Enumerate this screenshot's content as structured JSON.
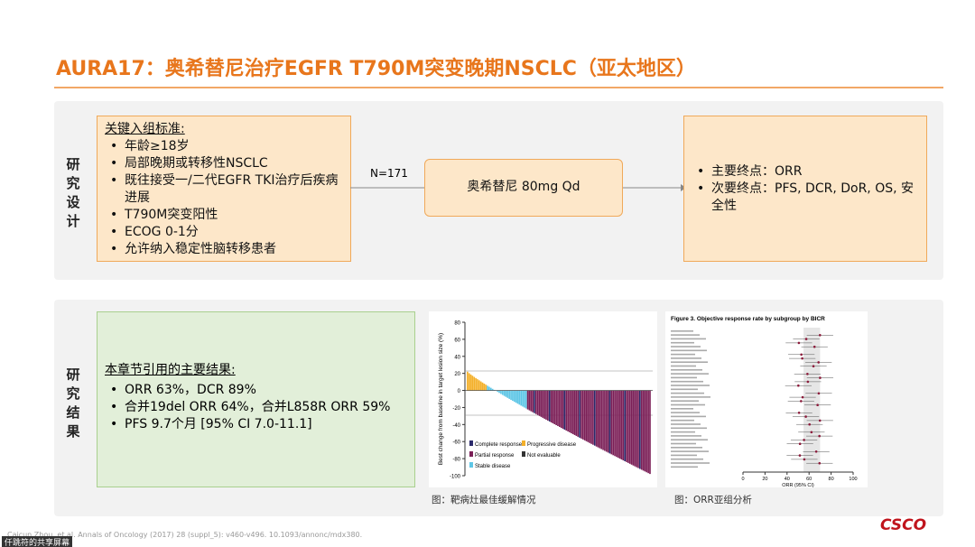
{
  "title": "AURA17：奥希替尼治疗EGFR T790M突变晚期NSCLC（亚太地区）",
  "design": {
    "label": "研究设计",
    "criteria": {
      "heading": "关键入组标准:",
      "items": [
        "年龄≥18岁",
        "局部晚期或转移性NSCLC",
        "既往接受一/二代EGFR TKI治疗后疾病进展",
        "T790M突变阳性",
        "ECOG 0-1分",
        "允许纳入稳定性脑转移患者"
      ]
    },
    "n": "N=171",
    "treatment": "奥希替尼 80mg Qd",
    "endpoints": [
      "主要终点：ORR",
      "次要终点：PFS, DCR, DoR, OS, 安全性"
    ]
  },
  "results": {
    "label": "研究结果",
    "heading": "本章节引用的主要结果:",
    "items": [
      "ORR 63%，DCR 89%",
      "合并19del ORR 64%，合并L858R ORR 59%",
      "PFS 9.7个月 [95% CI 7.0-11.1]"
    ]
  },
  "waterfall": {
    "y_label": "Best change from baseline in target lesion size (%)",
    "ylim": [
      -100,
      80
    ],
    "yticks": [
      80,
      60,
      40,
      20,
      0,
      -20,
      -40,
      -60,
      -80,
      -100
    ],
    "legend": [
      "Complete response",
      "Progressive disease",
      "Partial response",
      "Not evaluable",
      "Stable disease"
    ],
    "caption": "图：靶病灶最佳缓解情况"
  },
  "forest": {
    "title": "Figure 3. Objective response rate by subgroup by BICR",
    "x_label": "ORR (95% CI)",
    "xlim": [
      0,
      100
    ],
    "xticks": [
      0,
      20,
      40,
      60,
      80,
      100
    ],
    "caption": "图：ORR亚组分析"
  },
  "footnote": "Caicun Zhou, et al. Annals of Oncology (2017) 28 (suppl_5): v460-v496. 10.1093/annonc/mdx380.",
  "logo": "CSCO",
  "overlay": "仟跳符的共享屏幕"
}
